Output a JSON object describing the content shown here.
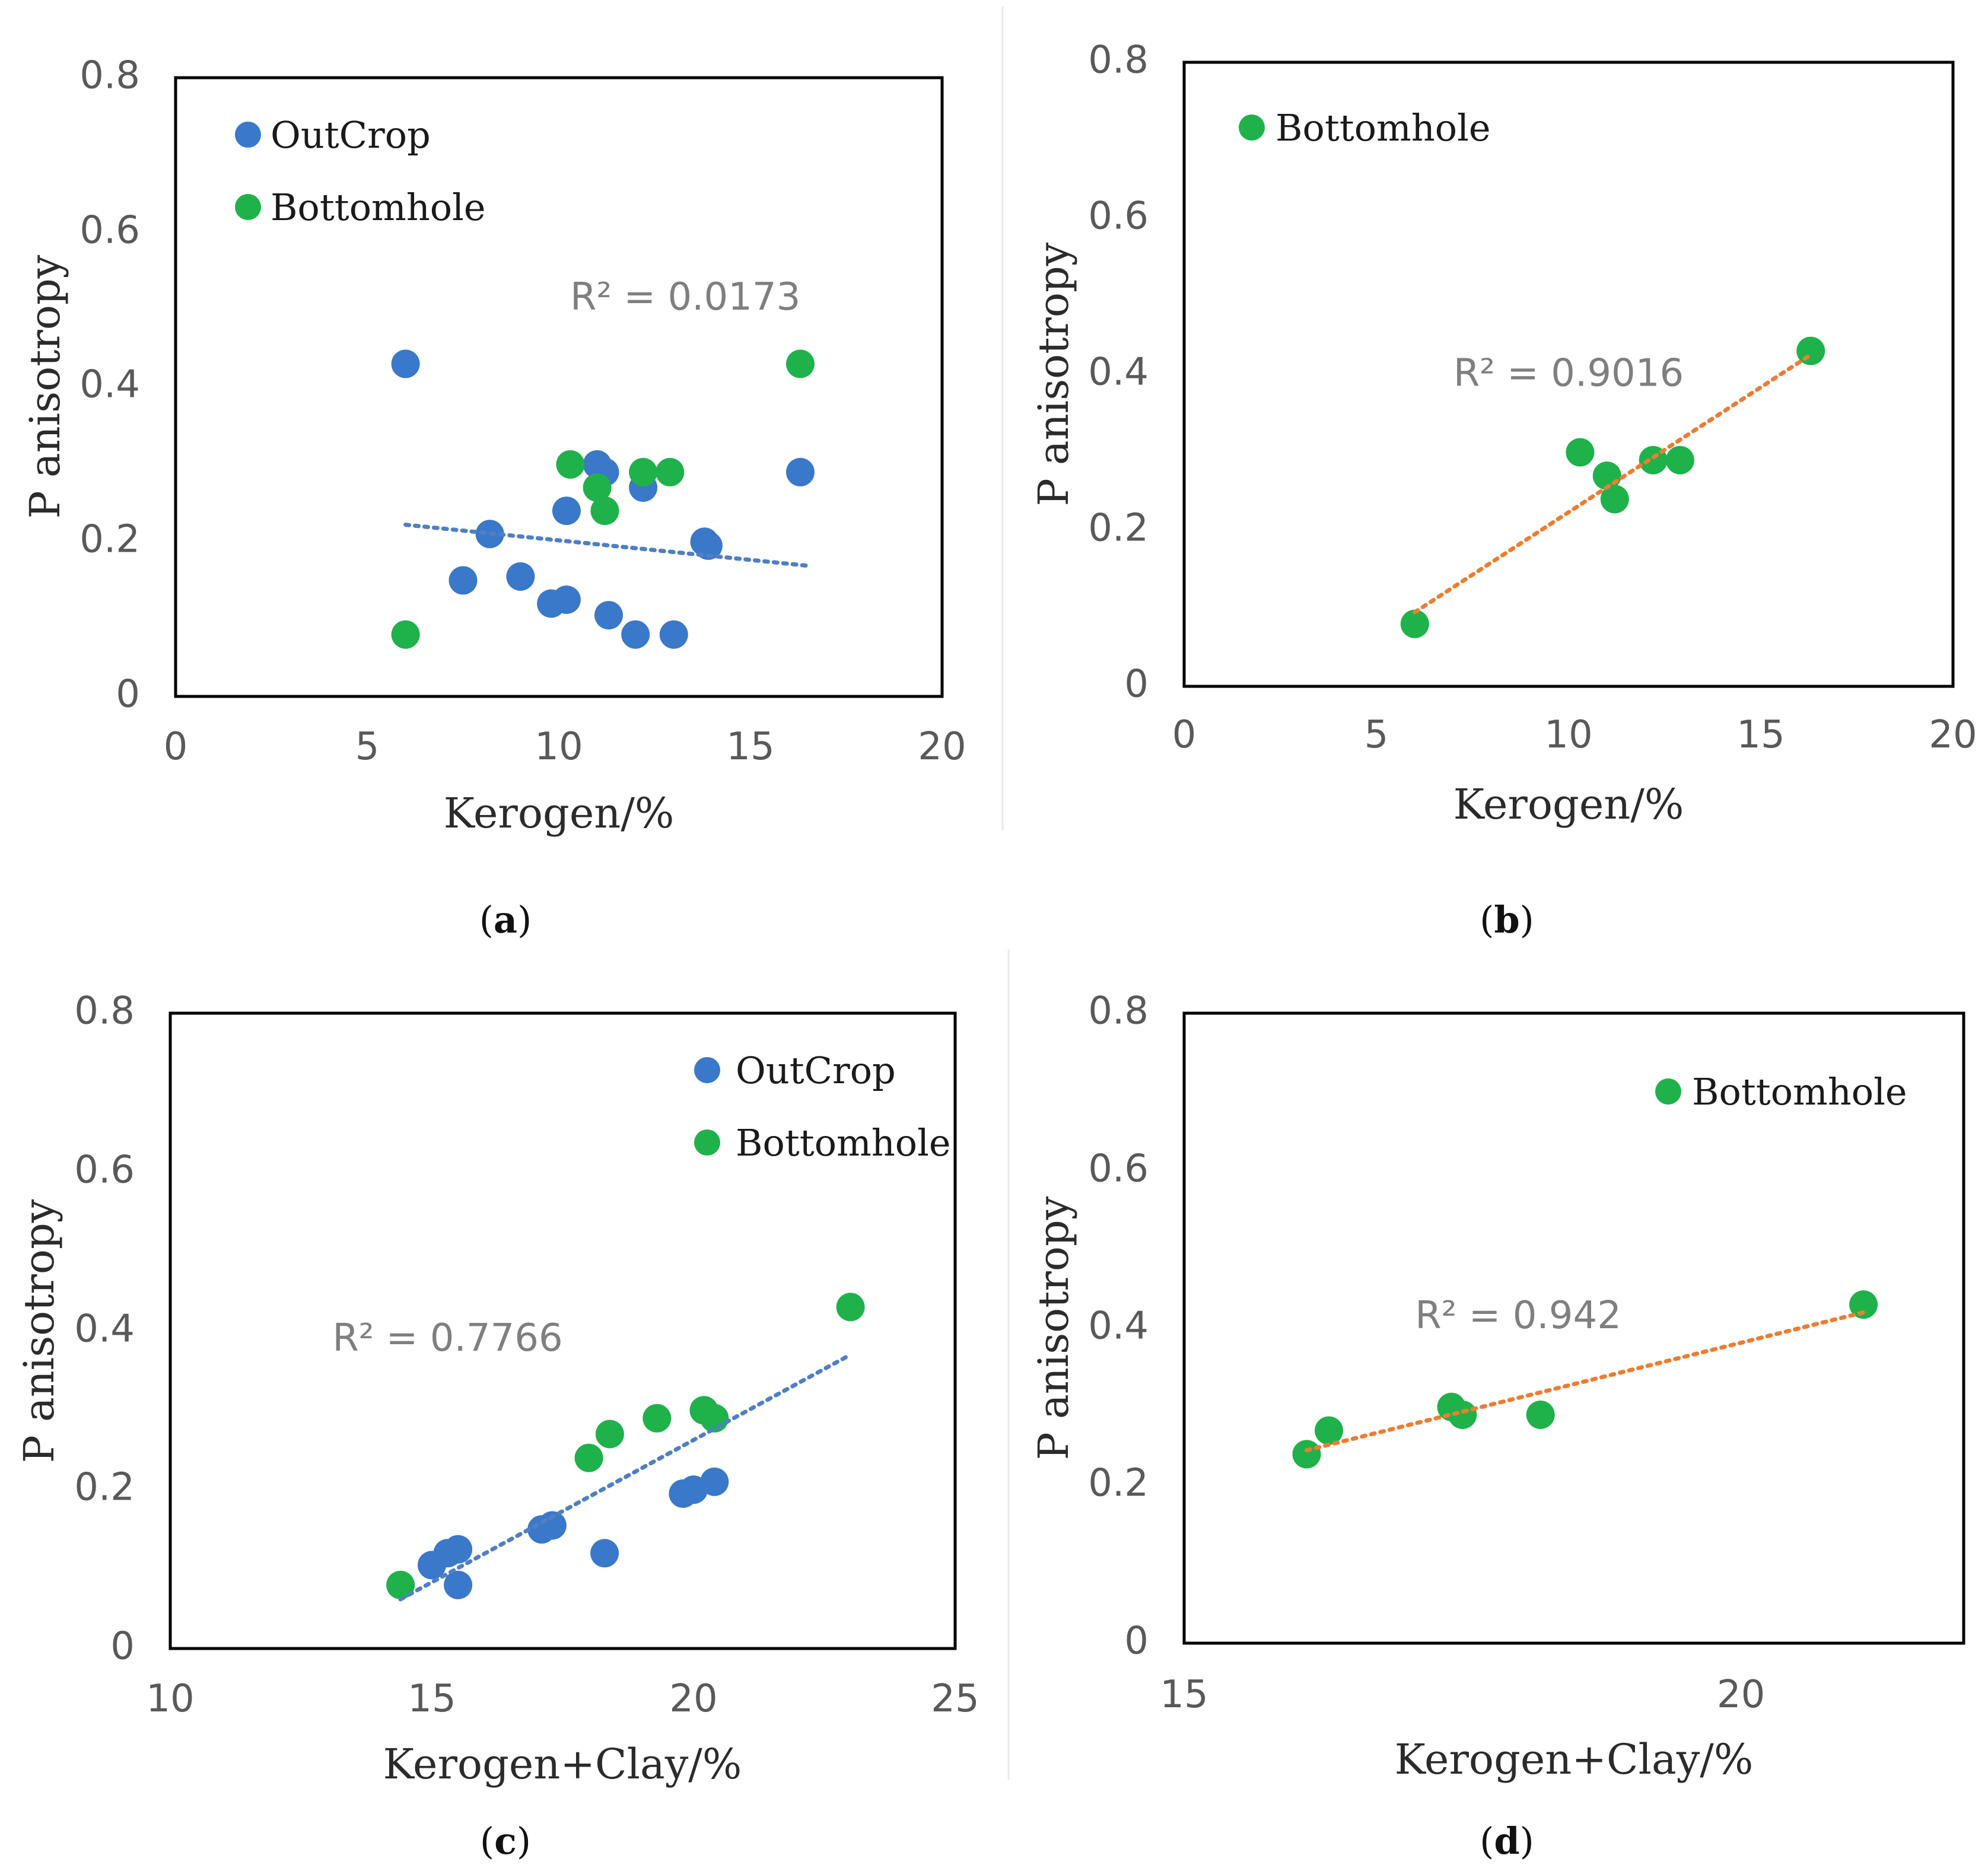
{
  "colors": {
    "outcrop": "#3a78c9",
    "bottomhole": "#1fb24a",
    "trend_blue": "#4f7fc4",
    "trend_orange": "#ed7d31"
  },
  "chart_data": [
    {
      "id": "a",
      "type": "scatter",
      "caption": "a",
      "xlabel": "Kerogen/%",
      "ylabel": "P anisotropy",
      "xlim": [
        0,
        20
      ],
      "ylim": [
        0,
        0.8
      ],
      "xticks": [
        "0",
        "5",
        "10",
        "15",
        "20"
      ],
      "yticks": [
        "0",
        "0.2",
        "0.4",
        "0.6",
        "0.8"
      ],
      "legend_position": "top-left",
      "series": [
        {
          "name": "OutCrop",
          "color": "outcrop",
          "points": [
            [
              6.0,
              0.43
            ],
            [
              8.2,
              0.21
            ],
            [
              7.5,
              0.15
            ],
            [
              9.0,
              0.155
            ],
            [
              9.8,
              0.12
            ],
            [
              10.2,
              0.125
            ],
            [
              10.2,
              0.24
            ],
            [
              11.3,
              0.105
            ],
            [
              11.0,
              0.3
            ],
            [
              11.2,
              0.29
            ],
            [
              12.2,
              0.27
            ],
            [
              12.0,
              0.08
            ],
            [
              13.0,
              0.08
            ],
            [
              13.8,
              0.2
            ],
            [
              13.9,
              0.195
            ],
            [
              16.3,
              0.29
            ]
          ]
        },
        {
          "name": "Bottomhole",
          "color": "bottomhole",
          "points": [
            [
              6.0,
              0.08
            ],
            [
              10.3,
              0.3
            ],
            [
              11.0,
              0.27
            ],
            [
              11.2,
              0.24
            ],
            [
              12.2,
              0.29
            ],
            [
              12.9,
              0.29
            ],
            [
              16.3,
              0.43
            ]
          ]
        }
      ],
      "trendline": {
        "color": "trend_blue",
        "x": [
          6.0,
          16.5
        ],
        "y": [
          0.222,
          0.169
        ],
        "r2_label": "R² = 0.0173",
        "r2_at": [
          13.3,
          0.5
        ]
      }
    },
    {
      "id": "b",
      "type": "scatter",
      "caption": "b",
      "xlabel": "Kerogen/%",
      "ylabel": "P anisotropy",
      "xlim": [
        0,
        20
      ],
      "ylim": [
        0,
        0.8
      ],
      "xticks": [
        "0",
        "5",
        "10",
        "15",
        "20"
      ],
      "yticks": [
        "0",
        "0.2",
        "0.4",
        "0.6",
        "0.8"
      ],
      "legend_position": "top-left",
      "series": [
        {
          "name": "Bottomhole",
          "color": "bottomhole",
          "points": [
            [
              6.0,
              0.08
            ],
            [
              10.3,
              0.3
            ],
            [
              11.0,
              0.27
            ],
            [
              11.2,
              0.24
            ],
            [
              12.2,
              0.29
            ],
            [
              12.9,
              0.29
            ],
            [
              16.3,
              0.43
            ]
          ]
        }
      ],
      "trendline": {
        "color": "trend_orange",
        "x": [
          6.0,
          16.3
        ],
        "y": [
          0.095,
          0.425
        ],
        "r2_label": "R² = 0.9016",
        "r2_at": [
          10.0,
          0.385
        ]
      }
    },
    {
      "id": "c",
      "type": "scatter",
      "caption": "c",
      "xlabel": "Kerogen+Clay/%",
      "ylabel": "P anisotropy",
      "xlim": [
        10,
        25
      ],
      "ylim": [
        0,
        0.8
      ],
      "xticks": [
        "10",
        "15",
        "20",
        "25"
      ],
      "yticks": [
        "0",
        "0.2",
        "0.4",
        "0.6",
        "0.8"
      ],
      "legend_position": "top-right",
      "series": [
        {
          "name": "OutCrop",
          "color": "outcrop",
          "points": [
            [
              15.0,
              0.105
            ],
            [
              15.3,
              0.12
            ],
            [
              15.5,
              0.125
            ],
            [
              15.5,
              0.08
            ],
            [
              17.1,
              0.15
            ],
            [
              17.3,
              0.155
            ],
            [
              18.3,
              0.12
            ],
            [
              19.8,
              0.195
            ],
            [
              20.0,
              0.2
            ],
            [
              20.4,
              0.21
            ],
            [
              20.2,
              0.3
            ],
            [
              20.4,
              0.29
            ]
          ]
        },
        {
          "name": "Bottomhole",
          "color": "bottomhole",
          "points": [
            [
              14.4,
              0.08
            ],
            [
              18.0,
              0.24
            ],
            [
              18.4,
              0.27
            ],
            [
              19.3,
              0.29
            ],
            [
              20.2,
              0.3
            ],
            [
              20.4,
              0.29
            ],
            [
              23.0,
              0.43
            ]
          ]
        }
      ],
      "trendline": {
        "color": "trend_blue",
        "x": [
          14.4,
          23.0
        ],
        "y": [
          0.062,
          0.37
        ],
        "r2_label": "R² = 0.7766",
        "r2_at": [
          15.3,
          0.375
        ]
      }
    },
    {
      "id": "d",
      "type": "scatter",
      "caption": "d",
      "xlabel": "Kerogen+Clay/%",
      "ylabel": "P anisotropy",
      "xlim": [
        15,
        22
      ],
      "ylim": [
        0,
        0.8
      ],
      "xticks": [
        "15",
        "20"
      ],
      "yticks": [
        "0",
        "0.2",
        "0.4",
        "0.6",
        "0.8"
      ],
      "legend_position": "top-right",
      "series": [
        {
          "name": "Bottomhole",
          "color": "bottomhole",
          "points": [
            [
              16.1,
              0.24
            ],
            [
              16.3,
              0.27
            ],
            [
              17.4,
              0.3
            ],
            [
              17.5,
              0.29
            ],
            [
              18.2,
              0.29
            ],
            [
              21.1,
              0.43
            ]
          ]
        }
      ],
      "trendline": {
        "color": "trend_orange",
        "x": [
          16.1,
          21.1
        ],
        "y": [
          0.245,
          0.42
        ],
        "r2_label": "R² = 0.942",
        "r2_at": [
          18.0,
          0.4
        ]
      }
    }
  ]
}
